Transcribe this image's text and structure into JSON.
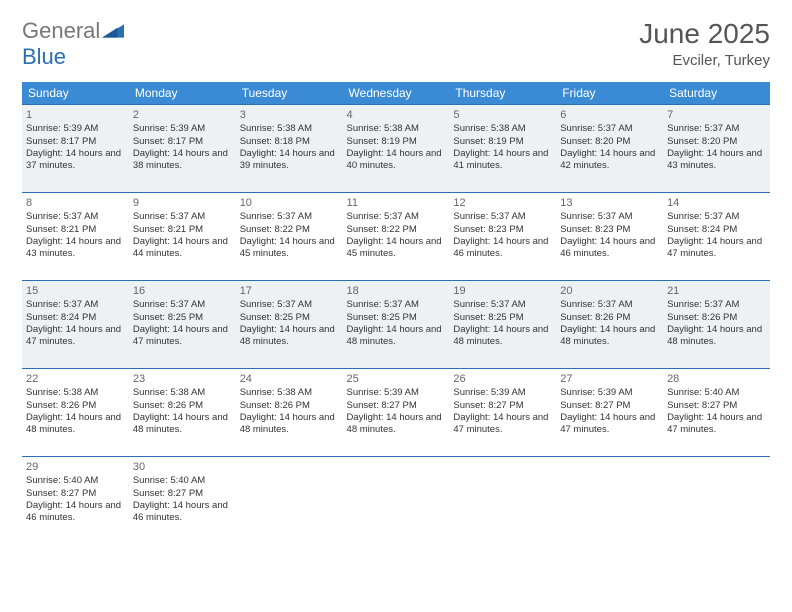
{
  "logo": {
    "word1": "General",
    "word2": "Blue"
  },
  "title": "June 2025",
  "location": "Evciler, Turkey",
  "colors": {
    "header_bg": "#3b8bd4",
    "border": "#2a6fb5",
    "shade": "#eef1f4",
    "text": "#333333",
    "title": "#555555"
  },
  "day_headers": [
    "Sunday",
    "Monday",
    "Tuesday",
    "Wednesday",
    "Thursday",
    "Friday",
    "Saturday"
  ],
  "days": [
    {
      "n": 1,
      "sr": "5:39 AM",
      "ss": "8:17 PM",
      "dl": "14 hours and 37 minutes."
    },
    {
      "n": 2,
      "sr": "5:39 AM",
      "ss": "8:17 PM",
      "dl": "14 hours and 38 minutes."
    },
    {
      "n": 3,
      "sr": "5:38 AM",
      "ss": "8:18 PM",
      "dl": "14 hours and 39 minutes."
    },
    {
      "n": 4,
      "sr": "5:38 AM",
      "ss": "8:19 PM",
      "dl": "14 hours and 40 minutes."
    },
    {
      "n": 5,
      "sr": "5:38 AM",
      "ss": "8:19 PM",
      "dl": "14 hours and 41 minutes."
    },
    {
      "n": 6,
      "sr": "5:37 AM",
      "ss": "8:20 PM",
      "dl": "14 hours and 42 minutes."
    },
    {
      "n": 7,
      "sr": "5:37 AM",
      "ss": "8:20 PM",
      "dl": "14 hours and 43 minutes."
    },
    {
      "n": 8,
      "sr": "5:37 AM",
      "ss": "8:21 PM",
      "dl": "14 hours and 43 minutes."
    },
    {
      "n": 9,
      "sr": "5:37 AM",
      "ss": "8:21 PM",
      "dl": "14 hours and 44 minutes."
    },
    {
      "n": 10,
      "sr": "5:37 AM",
      "ss": "8:22 PM",
      "dl": "14 hours and 45 minutes."
    },
    {
      "n": 11,
      "sr": "5:37 AM",
      "ss": "8:22 PM",
      "dl": "14 hours and 45 minutes."
    },
    {
      "n": 12,
      "sr": "5:37 AM",
      "ss": "8:23 PM",
      "dl": "14 hours and 46 minutes."
    },
    {
      "n": 13,
      "sr": "5:37 AM",
      "ss": "8:23 PM",
      "dl": "14 hours and 46 minutes."
    },
    {
      "n": 14,
      "sr": "5:37 AM",
      "ss": "8:24 PM",
      "dl": "14 hours and 47 minutes."
    },
    {
      "n": 15,
      "sr": "5:37 AM",
      "ss": "8:24 PM",
      "dl": "14 hours and 47 minutes."
    },
    {
      "n": 16,
      "sr": "5:37 AM",
      "ss": "8:25 PM",
      "dl": "14 hours and 47 minutes."
    },
    {
      "n": 17,
      "sr": "5:37 AM",
      "ss": "8:25 PM",
      "dl": "14 hours and 48 minutes."
    },
    {
      "n": 18,
      "sr": "5:37 AM",
      "ss": "8:25 PM",
      "dl": "14 hours and 48 minutes."
    },
    {
      "n": 19,
      "sr": "5:37 AM",
      "ss": "8:25 PM",
      "dl": "14 hours and 48 minutes."
    },
    {
      "n": 20,
      "sr": "5:37 AM",
      "ss": "8:26 PM",
      "dl": "14 hours and 48 minutes."
    },
    {
      "n": 21,
      "sr": "5:37 AM",
      "ss": "8:26 PM",
      "dl": "14 hours and 48 minutes."
    },
    {
      "n": 22,
      "sr": "5:38 AM",
      "ss": "8:26 PM",
      "dl": "14 hours and 48 minutes."
    },
    {
      "n": 23,
      "sr": "5:38 AM",
      "ss": "8:26 PM",
      "dl": "14 hours and 48 minutes."
    },
    {
      "n": 24,
      "sr": "5:38 AM",
      "ss": "8:26 PM",
      "dl": "14 hours and 48 minutes."
    },
    {
      "n": 25,
      "sr": "5:39 AM",
      "ss": "8:27 PM",
      "dl": "14 hours and 48 minutes."
    },
    {
      "n": 26,
      "sr": "5:39 AM",
      "ss": "8:27 PM",
      "dl": "14 hours and 47 minutes."
    },
    {
      "n": 27,
      "sr": "5:39 AM",
      "ss": "8:27 PM",
      "dl": "14 hours and 47 minutes."
    },
    {
      "n": 28,
      "sr": "5:40 AM",
      "ss": "8:27 PM",
      "dl": "14 hours and 47 minutes."
    },
    {
      "n": 29,
      "sr": "5:40 AM",
      "ss": "8:27 PM",
      "dl": "14 hours and 46 minutes."
    },
    {
      "n": 30,
      "sr": "5:40 AM",
      "ss": "8:27 PM",
      "dl": "14 hours and 46 minutes."
    }
  ],
  "labels": {
    "sunrise": "Sunrise:",
    "sunset": "Sunset:",
    "daylight": "Daylight:"
  },
  "layout": {
    "columns": 7,
    "start_day_index": 0,
    "shaded_rows": [
      0,
      2
    ]
  }
}
